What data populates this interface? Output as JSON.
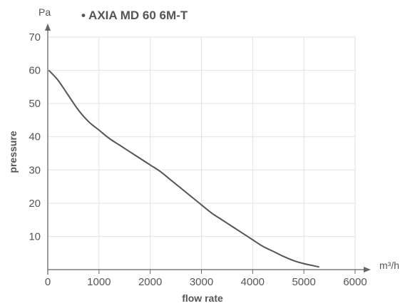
{
  "chart_data": {
    "type": "line",
    "title": "• AXIA MD 60 6M-T",
    "xlabel": "flow rate",
    "ylabel": "pressure",
    "x_unit": "m³/h",
    "y_unit": "Pa",
    "xlim": [
      0,
      6000
    ],
    "ylim": [
      0,
      70
    ],
    "x_ticks": [
      0,
      1000,
      2000,
      3000,
      4000,
      5000,
      6000
    ],
    "y_ticks": [
      10,
      20,
      30,
      40,
      50,
      60,
      70
    ],
    "grid": true,
    "legend": "none",
    "series": [
      {
        "color": "#555555",
        "points": [
          [
            20,
            60
          ],
          [
            200,
            57
          ],
          [
            400,
            52.5
          ],
          [
            600,
            48
          ],
          [
            800,
            44.5
          ],
          [
            1000,
            42
          ],
          [
            1200,
            39.5
          ],
          [
            1400,
            37.5
          ],
          [
            1600,
            35.5
          ],
          [
            1800,
            33.5
          ],
          [
            2000,
            31.5
          ],
          [
            2200,
            29.5
          ],
          [
            2400,
            27
          ],
          [
            2600,
            24.5
          ],
          [
            2800,
            22
          ],
          [
            3000,
            19.5
          ],
          [
            3200,
            17
          ],
          [
            3400,
            15
          ],
          [
            3600,
            13
          ],
          [
            3800,
            11
          ],
          [
            4000,
            9
          ],
          [
            4200,
            7
          ],
          [
            4400,
            5.5
          ],
          [
            4600,
            4
          ],
          [
            4800,
            2.7
          ],
          [
            5000,
            1.8
          ],
          [
            5150,
            1.3
          ],
          [
            5300,
            0.8
          ]
        ]
      }
    ]
  }
}
